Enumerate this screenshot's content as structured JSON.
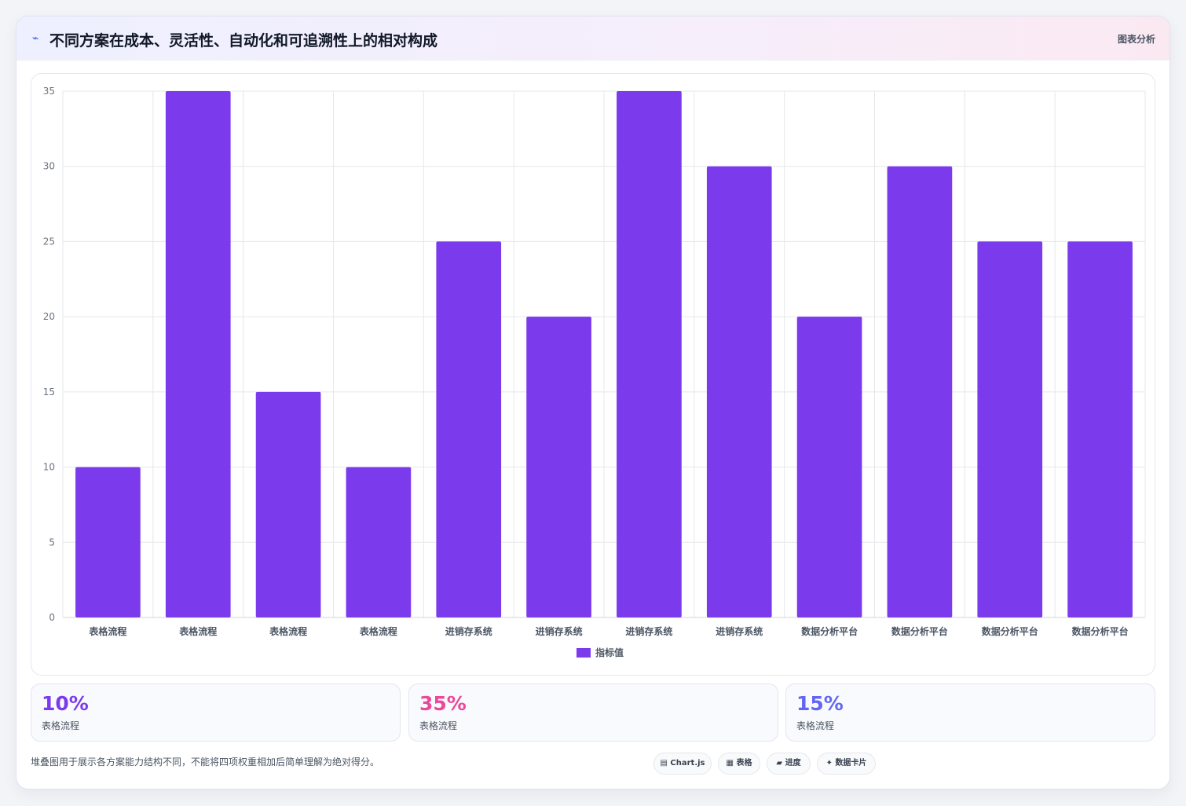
{
  "header": {
    "icon": "chart-line-icon",
    "icon_glyph": "⌁",
    "title": "不同方案在成本、灵活性、自动化和可追溯性上的相对构成",
    "tag": "图表分析"
  },
  "chart_data": {
    "type": "bar",
    "categories": [
      "表格流程",
      "表格流程",
      "表格流程",
      "表格流程",
      "进销存系统",
      "进销存系统",
      "进销存系统",
      "进销存系统",
      "数据分析平台",
      "数据分析平台",
      "数据分析平台",
      "数据分析平台"
    ],
    "series": [
      {
        "name": "指标值",
        "color": "#7c3aed",
        "values": [
          10,
          35,
          15,
          10,
          25,
          20,
          35,
          30,
          20,
          30,
          25,
          25
        ]
      }
    ],
    "ylim": [
      0,
      35
    ],
    "yticks": [
      0,
      5,
      10,
      15,
      20,
      25,
      30,
      35
    ],
    "grid": true,
    "legend": "bottom"
  },
  "stats": [
    {
      "value": "10%",
      "label": "表格流程",
      "color": "#7c3aed"
    },
    {
      "value": "35%",
      "label": "表格流程",
      "color": "#ec4899"
    },
    {
      "value": "15%",
      "label": "表格流程",
      "color": "#6366f1"
    }
  ],
  "footer": {
    "note": "堆叠图用于展示各方案能力结构不同，不能将四项权重相加后简单理解为绝对得分。",
    "chips": [
      {
        "icon": "chart-icon",
        "glyph": "▤",
        "label": "Chart.js"
      },
      {
        "icon": "table-icon",
        "glyph": "▦",
        "label": "表格"
      },
      {
        "icon": "progress-icon",
        "glyph": "▰",
        "label": "进度"
      },
      {
        "icon": "sparkle-icon",
        "glyph": "✦",
        "label": "数据卡片"
      }
    ]
  }
}
